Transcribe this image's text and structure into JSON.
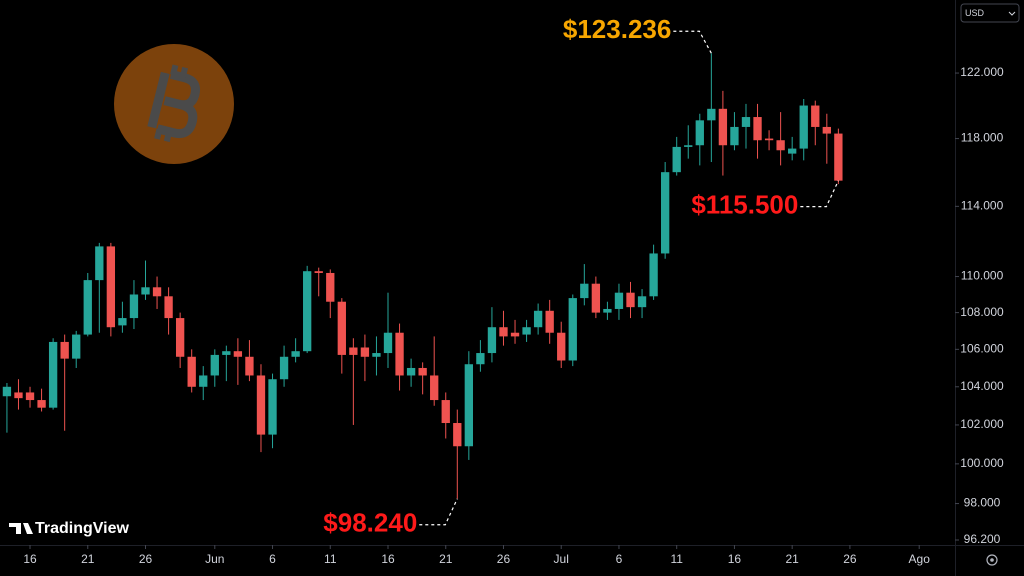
{
  "chart_data": {
    "type": "candlestick",
    "up_color": "#26a69a",
    "down_color": "#ef5350",
    "open": [
      103500,
      103700,
      103700,
      103300,
      102900,
      106400,
      105500,
      106800,
      109800,
      111700,
      107300,
      107700,
      109000,
      109400,
      108900,
      107700,
      105600,
      104000,
      104600,
      105700,
      105900,
      105600,
      104600,
      101500,
      104400,
      105600,
      105900,
      110300,
      110200,
      108600,
      106100,
      106100,
      105600,
      105800,
      106900,
      104600,
      105000,
      104600,
      103300,
      102100,
      100900,
      105200,
      105800,
      107200,
      106900,
      106800,
      107200,
      108100,
      106900,
      105400,
      108800,
      109600,
      108000,
      108200,
      109100,
      108300,
      108900,
      111300,
      116000,
      117500,
      117600,
      119100,
      119800,
      117600,
      118700,
      119300,
      118000,
      117900,
      117100,
      117400,
      120000,
      118700,
      118300
    ],
    "high": [
      104200,
      104400,
      104000,
      103900,
      106600,
      106800,
      107000,
      110200,
      111900,
      111900,
      108600,
      109800,
      110900,
      110000,
      109400,
      108000,
      106000,
      105100,
      106000,
      106200,
      106600,
      106500,
      105200,
      104700,
      106200,
      106600,
      110600,
      110500,
      110400,
      108800,
      106600,
      106800,
      106700,
      109100,
      107400,
      105500,
      105300,
      106700,
      103700,
      102800,
      105900,
      106500,
      108300,
      108100,
      107600,
      107600,
      108500,
      108700,
      107500,
      109000,
      110700,
      110000,
      108600,
      109600,
      109700,
      109300,
      111800,
      116600,
      118100,
      118800,
      119500,
      123236,
      120900,
      119600,
      120100,
      120100,
      118500,
      119600,
      118100,
      120400,
      120300,
      119500,
      118600
    ],
    "low": [
      101600,
      102800,
      102900,
      102700,
      102800,
      101700,
      105000,
      106700,
      106900,
      106700,
      106900,
      107100,
      108700,
      108200,
      106800,
      105000,
      103700,
      103300,
      104000,
      104300,
      104100,
      104300,
      100600,
      100800,
      104000,
      105300,
      105800,
      108900,
      107700,
      104700,
      102000,
      104300,
      104600,
      105000,
      103800,
      104000,
      103600,
      103000,
      101300,
      98240,
      100200,
      104800,
      105300,
      106200,
      106300,
      106400,
      106800,
      106300,
      105000,
      105100,
      108400,
      107700,
      107600,
      107600,
      107700,
      107700,
      108700,
      111000,
      115800,
      116800,
      116400,
      116600,
      115800,
      117300,
      117400,
      116800,
      117300,
      116400,
      116700,
      116700,
      117600,
      116500,
      115300
    ],
    "close": [
      104000,
      103400,
      103300,
      102900,
      106400,
      105500,
      106800,
      109800,
      111700,
      107200,
      107700,
      109000,
      109400,
      108900,
      107700,
      105600,
      104000,
      104600,
      105700,
      105900,
      105600,
      104600,
      101500,
      104400,
      105600,
      105900,
      110300,
      110200,
      108600,
      105700,
      105700,
      105600,
      105800,
      106900,
      104600,
      105000,
      104600,
      103300,
      102100,
      100900,
      105200,
      105800,
      107200,
      106700,
      106700,
      107200,
      108100,
      106900,
      105400,
      108800,
      109600,
      108000,
      108200,
      109100,
      108300,
      108900,
      111300,
      116000,
      117500,
      117600,
      119100,
      119800,
      117600,
      118700,
      119300,
      117900,
      117900,
      117300,
      117400,
      120000,
      118700,
      118300,
      115500
    ],
    "log_scale": true,
    "ylim": [
      96200,
      126620
    ],
    "yticks": [
      {
        "value": 96200,
        "label": "96.200"
      },
      {
        "value": 98000,
        "label": "98.000"
      },
      {
        "value": 100000,
        "label": "100.000"
      },
      {
        "value": 102000,
        "label": "102.000"
      },
      {
        "value": 104000,
        "label": "104.000"
      },
      {
        "value": 106000,
        "label": "106.000"
      },
      {
        "value": 108000,
        "label": "108.000"
      },
      {
        "value": 110000,
        "label": "110.000"
      },
      {
        "value": 114000,
        "label": "114.000"
      },
      {
        "value": 118000,
        "label": "118.000"
      },
      {
        "value": 122000,
        "label": "122.000"
      }
    ],
    "xlim": [
      -0.6,
      82.1
    ],
    "xticks": [
      {
        "value": 2,
        "label": "16"
      },
      {
        "value": 7,
        "label": "21"
      },
      {
        "value": 12,
        "label": "26"
      },
      {
        "value": 18,
        "label": "Jun"
      },
      {
        "value": 23,
        "label": "6"
      },
      {
        "value": 28,
        "label": "11"
      },
      {
        "value": 33,
        "label": "16"
      },
      {
        "value": 38,
        "label": "21"
      },
      {
        "value": 43,
        "label": "26"
      },
      {
        "value": 48,
        "label": "Jul"
      },
      {
        "value": 53,
        "label": "6"
      },
      {
        "value": 58,
        "label": "11"
      },
      {
        "value": 63,
        "label": "16"
      },
      {
        "value": 68,
        "label": "21"
      },
      {
        "value": 73,
        "label": "26"
      },
      {
        "value": 79,
        "label": "Ago"
      }
    ],
    "annotations": [
      {
        "label": "$123.236",
        "value": 123236,
        "color": "#f7a600",
        "side": "above"
      },
      {
        "label": "$115.500",
        "value": 115500,
        "color": "#ff1a1a",
        "side": "below"
      },
      {
        "label": "$98.240",
        "value": 98240,
        "color": "#ff1a1a",
        "side": "below"
      }
    ]
  },
  "ui": {
    "currency": "USD",
    "branding": "TradingView"
  }
}
